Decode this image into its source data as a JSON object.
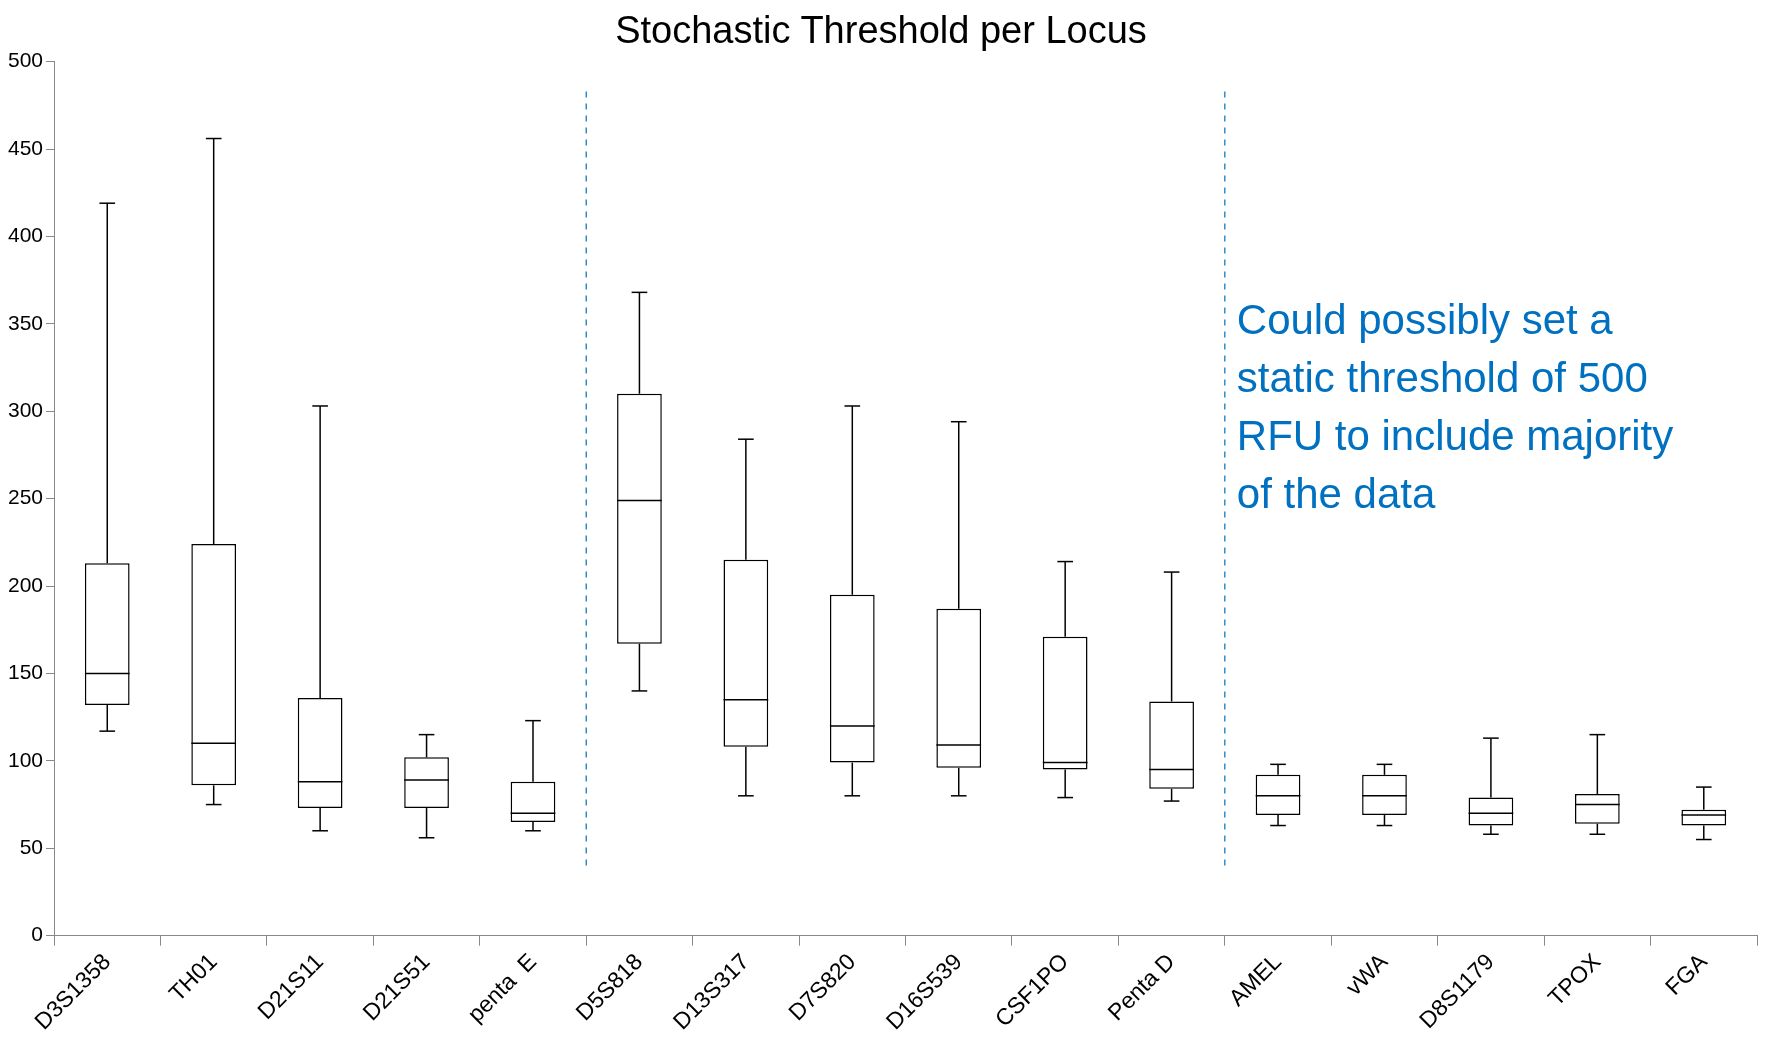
{
  "chart_data": {
    "type": "box",
    "title": "Stochastic Threshold per Locus",
    "categories": [
      "D3S1358",
      "TH01",
      "D21S11",
      "D21S51",
      "penta  E",
      "D5S818",
      "D13S317",
      "D7S820",
      "D16S539",
      "CSF1PO",
      "Penta D",
      "AMEL",
      "vWA",
      "D8S1179",
      "TPOX",
      "FGA"
    ],
    "boxes": [
      {
        "low": 117,
        "q1": 132,
        "median": 150,
        "q3": 213,
        "high": 419
      },
      {
        "low": 75,
        "q1": 86,
        "median": 110,
        "q3": 224,
        "high": 456
      },
      {
        "low": 60,
        "q1": 73,
        "median": 88,
        "q3": 136,
        "high": 303
      },
      {
        "low": 56,
        "q1": 73,
        "median": 89,
        "q3": 102,
        "high": 115
      },
      {
        "low": 60,
        "q1": 65,
        "median": 70,
        "q3": 88,
        "high": 123
      },
      {
        "low": 140,
        "q1": 167,
        "median": 249,
        "q3": 310,
        "high": 368
      },
      {
        "low": 80,
        "q1": 108,
        "median": 135,
        "q3": 215,
        "high": 284
      },
      {
        "low": 80,
        "q1": 99,
        "median": 120,
        "q3": 195,
        "high": 303
      },
      {
        "low": 80,
        "q1": 96,
        "median": 109,
        "q3": 187,
        "high": 294
      },
      {
        "low": 79,
        "q1": 95,
        "median": 99,
        "q3": 171,
        "high": 214
      },
      {
        "low": 77,
        "q1": 84,
        "median": 95,
        "q3": 134,
        "high": 208
      },
      {
        "low": 63,
        "q1": 69,
        "median": 80,
        "q3": 92,
        "high": 98
      },
      {
        "low": 63,
        "q1": 69,
        "median": 80,
        "q3": 92,
        "high": 98
      },
      {
        "low": 58,
        "q1": 63,
        "median": 70,
        "q3": 79,
        "high": 113
      },
      {
        "low": 58,
        "q1": 64,
        "median": 75,
        "q3": 81,
        "high": 115
      },
      {
        "low": 55,
        "q1": 63,
        "median": 69,
        "q3": 72,
        "high": 85
      }
    ],
    "color": "#000000",
    "ylim": [
      0,
      500
    ],
    "yticks": [
      0,
      50,
      100,
      150,
      200,
      250,
      300,
      350,
      400,
      450,
      500
    ],
    "grid": false,
    "legend": false,
    "annotations": [
      "Could possibly set a\nstatic threshold of 500\nRFU to include majority\nof the data"
    ]
  }
}
